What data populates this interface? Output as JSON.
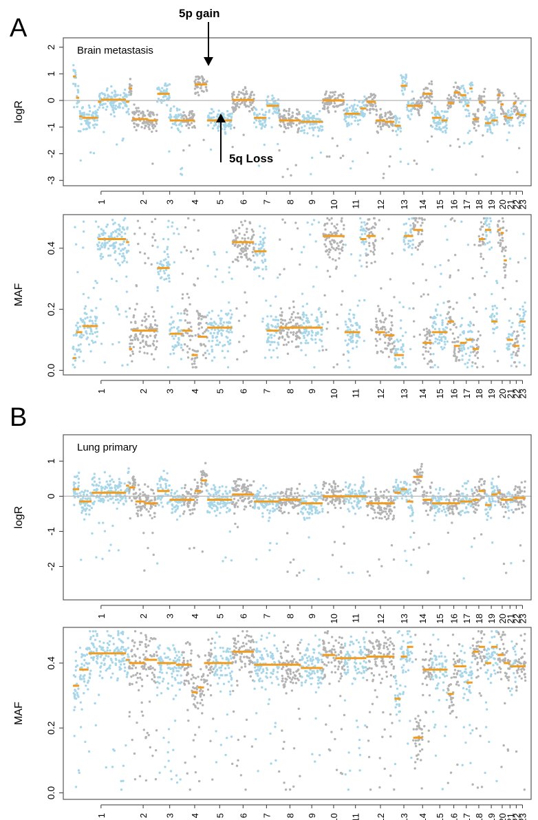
{
  "panel_labels": {
    "a": "A",
    "b": "B"
  },
  "colors": {
    "dot_blue": "#a6d6e8",
    "dot_gray": "#b3b3b3",
    "segment": "#f39c1b",
    "zero_line": "#bbbbbb",
    "frame": "#555555"
  },
  "annotations": {
    "gain": "5p gain",
    "loss": "5q Loss"
  },
  "chromosomes": [
    "1",
    "2",
    "3",
    "4",
    "5",
    "6",
    "7",
    "8",
    "9",
    "10",
    "11",
    "12",
    "13",
    "14",
    "15",
    "16",
    "17",
    "18",
    "19",
    "20",
    "21",
    "22",
    "23"
  ],
  "chromosome_boundaries": [
    0,
    18,
    27,
    35,
    43,
    51,
    58,
    66,
    73,
    80,
    87,
    94,
    103,
    109,
    115,
    120,
    124,
    128,
    132,
    136,
    139,
    141,
    143,
    145
  ],
  "chart_data": [
    {
      "id": "A-logR",
      "type": "scatter",
      "title": "Brain metastasis",
      "ylabel": "logR",
      "ylim": [
        -3.2,
        2.35
      ],
      "yticks": [
        2,
        1,
        0,
        -1,
        -2,
        -3
      ],
      "segments": [
        [
          0,
          1,
          0.9
        ],
        [
          1,
          2,
          0.1
        ],
        [
          2,
          3,
          -0.6
        ],
        [
          3,
          8,
          -0.65
        ],
        [
          8,
          9,
          -0.05
        ],
        [
          9,
          17,
          0.03
        ],
        [
          17,
          18,
          -0.05
        ],
        [
          18,
          19,
          0.45
        ],
        [
          19,
          24,
          -0.7
        ],
        [
          24,
          27,
          -0.75
        ],
        [
          27,
          31,
          0.25
        ],
        [
          31,
          35,
          -0.75
        ],
        [
          35,
          39,
          -0.75
        ],
        [
          39,
          43,
          0.6
        ],
        [
          43,
          51,
          -0.75
        ],
        [
          51,
          58,
          0.02
        ],
        [
          58,
          62,
          -0.65
        ],
        [
          62,
          66,
          -0.2
        ],
        [
          66,
          69,
          -0.75
        ],
        [
          69,
          73,
          -0.75
        ],
        [
          73,
          80,
          -0.8
        ],
        [
          80,
          87,
          0.0
        ],
        [
          87,
          92,
          -0.5
        ],
        [
          92,
          94,
          -0.3
        ],
        [
          94,
          97,
          -0.05
        ],
        [
          97,
          100,
          -0.75
        ],
        [
          100,
          103,
          -0.8
        ],
        [
          103,
          105,
          -0.95
        ],
        [
          105,
          107,
          0.55
        ],
        [
          107,
          109,
          -0.2
        ],
        [
          109,
          112,
          -0.2
        ],
        [
          112,
          115,
          0.25
        ],
        [
          115,
          118,
          -0.65
        ],
        [
          118,
          120,
          -0.75
        ],
        [
          120,
          122,
          -0.1
        ],
        [
          122,
          124,
          0.3
        ],
        [
          124,
          126,
          0.2
        ],
        [
          126,
          127,
          -0.2
        ],
        [
          127,
          128,
          0.45
        ],
        [
          128,
          130,
          -0.7
        ],
        [
          130,
          132,
          -0.05
        ],
        [
          132,
          134,
          -0.85
        ],
        [
          134,
          136,
          -0.75
        ],
        [
          136,
          137,
          0.2
        ],
        [
          137,
          138,
          -0.15
        ],
        [
          138,
          139,
          -0.6
        ],
        [
          139,
          141,
          -0.65
        ],
        [
          141,
          142,
          -0.1
        ],
        [
          142,
          143,
          -0.5
        ],
        [
          143,
          145,
          -0.55
        ]
      ]
    },
    {
      "id": "A-MAF",
      "type": "scatter",
      "ylabel": "MAF",
      "ylim": [
        -0.015,
        0.51
      ],
      "yticks": [
        0.0,
        0.2,
        0.4
      ],
      "segments": [
        [
          0,
          1,
          0.04
        ],
        [
          1,
          3,
          0.125
        ],
        [
          3,
          8,
          0.145
        ],
        [
          8,
          10,
          0.43
        ],
        [
          10,
          17,
          0.43
        ],
        [
          17,
          18,
          0.42
        ],
        [
          18,
          19,
          0.07
        ],
        [
          19,
          27,
          0.13
        ],
        [
          27,
          31,
          0.335
        ],
        [
          31,
          35,
          0.12
        ],
        [
          35,
          38,
          0.13
        ],
        [
          38,
          40,
          0.05
        ],
        [
          40,
          43,
          0.11
        ],
        [
          43,
          51,
          0.14
        ],
        [
          51,
          58,
          0.42
        ],
        [
          58,
          62,
          0.39
        ],
        [
          62,
          66,
          0.13
        ],
        [
          66,
          73,
          0.14
        ],
        [
          73,
          80,
          0.14
        ],
        [
          80,
          87,
          0.44
        ],
        [
          87,
          92,
          0.125
        ],
        [
          92,
          94,
          0.43
        ],
        [
          94,
          97,
          0.44
        ],
        [
          97,
          100,
          0.125
        ],
        [
          100,
          103,
          0.115
        ],
        [
          103,
          106,
          0.05
        ],
        [
          106,
          109,
          0.44
        ],
        [
          109,
          112,
          0.46
        ],
        [
          112,
          115,
          0.09
        ],
        [
          115,
          117,
          0.125
        ],
        [
          117,
          120,
          0.125
        ],
        [
          120,
          122,
          0.16
        ],
        [
          122,
          124,
          0.08
        ],
        [
          124,
          126,
          0.09
        ],
        [
          126,
          128,
          0.1
        ],
        [
          128,
          130,
          0.07
        ],
        [
          130,
          132,
          0.43
        ],
        [
          132,
          134,
          0.46
        ],
        [
          134,
          136,
          0.16
        ],
        [
          136,
          137,
          0.46
        ],
        [
          137,
          138,
          0.45
        ],
        [
          138,
          139,
          0.36
        ],
        [
          139,
          141,
          0.1
        ],
        [
          141,
          143,
          0.08
        ],
        [
          143,
          145,
          0.16
        ]
      ]
    },
    {
      "id": "B-logR",
      "type": "scatter",
      "title": "Lung primary",
      "ylabel": "logR",
      "ylim": [
        -2.95,
        1.75
      ],
      "yticks": [
        1,
        0,
        -1,
        -2
      ],
      "segments": [
        [
          0,
          2,
          0.2
        ],
        [
          2,
          6,
          -0.15
        ],
        [
          6,
          17,
          0.1
        ],
        [
          17,
          18,
          0.3
        ],
        [
          18,
          20,
          0.25
        ],
        [
          20,
          23,
          -0.15
        ],
        [
          23,
          27,
          -0.2
        ],
        [
          27,
          31,
          0.15
        ],
        [
          31,
          35,
          -0.1
        ],
        [
          35,
          39,
          -0.1
        ],
        [
          39,
          41,
          0.15
        ],
        [
          41,
          43,
          0.45
        ],
        [
          43,
          51,
          -0.1
        ],
        [
          51,
          58,
          0.05
        ],
        [
          58,
          66,
          -0.15
        ],
        [
          66,
          73,
          -0.1
        ],
        [
          73,
          80,
          -0.2
        ],
        [
          80,
          87,
          0.0
        ],
        [
          87,
          94,
          0.0
        ],
        [
          94,
          103,
          -0.2
        ],
        [
          103,
          105,
          0.1
        ],
        [
          105,
          107,
          0.2
        ],
        [
          107,
          109,
          -0.15
        ],
        [
          109,
          112,
          0.55
        ],
        [
          112,
          115,
          -0.1
        ],
        [
          115,
          120,
          -0.2
        ],
        [
          120,
          124,
          -0.2
        ],
        [
          124,
          128,
          -0.15
        ],
        [
          128,
          130,
          -0.1
        ],
        [
          130,
          132,
          0.15
        ],
        [
          132,
          134,
          -0.25
        ],
        [
          134,
          136,
          0.05
        ],
        [
          136,
          137,
          0.1
        ],
        [
          137,
          139,
          -0.1
        ],
        [
          139,
          141,
          -0.1
        ],
        [
          141,
          145,
          -0.05
        ]
      ]
    },
    {
      "id": "B-MAF",
      "type": "scatter",
      "ylabel": "MAF",
      "ylim": [
        -0.02,
        0.51
      ],
      "yticks": [
        0.0,
        0.2,
        0.4
      ],
      "segments": [
        [
          0,
          2,
          0.33
        ],
        [
          2,
          5,
          0.38
        ],
        [
          5,
          17,
          0.43
        ],
        [
          17,
          18,
          0.41
        ],
        [
          18,
          21,
          0.4
        ],
        [
          21,
          23,
          0.4
        ],
        [
          23,
          27,
          0.41
        ],
        [
          27,
          31,
          0.4
        ],
        [
          31,
          33,
          0.4
        ],
        [
          33,
          35,
          0.395
        ],
        [
          35,
          38,
          0.395
        ],
        [
          38,
          40,
          0.31
        ],
        [
          40,
          42,
          0.325
        ],
        [
          42,
          45,
          0.4
        ],
        [
          45,
          51,
          0.4
        ],
        [
          51,
          58,
          0.435
        ],
        [
          58,
          66,
          0.395
        ],
        [
          66,
          73,
          0.395
        ],
        [
          73,
          80,
          0.385
        ],
        [
          80,
          84,
          0.425
        ],
        [
          84,
          87,
          0.415
        ],
        [
          87,
          94,
          0.415
        ],
        [
          94,
          103,
          0.42
        ],
        [
          103,
          105,
          0.29
        ],
        [
          105,
          107,
          0.42
        ],
        [
          107,
          109,
          0.45
        ],
        [
          109,
          112,
          0.17
        ],
        [
          112,
          115,
          0.38
        ],
        [
          115,
          120,
          0.38
        ],
        [
          120,
          122,
          0.305
        ],
        [
          122,
          124,
          0.39
        ],
        [
          124,
          126,
          0.39
        ],
        [
          126,
          128,
          0.34
        ],
        [
          128,
          130,
          0.435
        ],
        [
          130,
          132,
          0.45
        ],
        [
          132,
          134,
          0.4
        ],
        [
          134,
          136,
          0.45
        ],
        [
          136,
          138,
          0.425
        ],
        [
          138,
          140,
          0.4
        ],
        [
          140,
          142,
          0.39
        ],
        [
          142,
          145,
          0.39
        ]
      ]
    }
  ]
}
